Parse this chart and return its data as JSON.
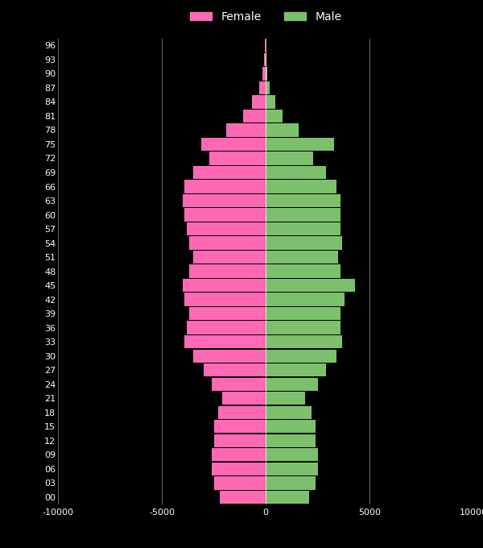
{
  "background_color": "#000000",
  "bar_color_female": "#FF69B4",
  "bar_color_male": "#7DC06B",
  "text_color": "#FFFFFF",
  "grid_color": "#FFFFFF",
  "ages": [
    0,
    3,
    6,
    9,
    12,
    15,
    18,
    21,
    24,
    27,
    30,
    33,
    36,
    39,
    42,
    45,
    48,
    51,
    54,
    57,
    60,
    63,
    66,
    69,
    72,
    75,
    78,
    81,
    84,
    87,
    90,
    93,
    96
  ],
  "female": [
    2200,
    2500,
    2600,
    2600,
    2500,
    2500,
    2300,
    2100,
    2600,
    3000,
    3500,
    3900,
    3800,
    3700,
    3900,
    4000,
    3700,
    3500,
    3700,
    3800,
    3900,
    4000,
    3900,
    3500,
    2700,
    3100,
    1900,
    1100,
    650,
    300,
    160,
    70,
    25
  ],
  "male": [
    2100,
    2400,
    2500,
    2500,
    2400,
    2400,
    2200,
    1900,
    2500,
    2900,
    3400,
    3700,
    3600,
    3600,
    3800,
    4300,
    3600,
    3500,
    3700,
    3600,
    3600,
    3600,
    3400,
    2900,
    2300,
    3300,
    1600,
    800,
    450,
    180,
    90,
    35,
    10
  ],
  "xlim": [
    -10000,
    10000
  ],
  "xticks": [
    -10000,
    -5000,
    0,
    5000,
    10000
  ],
  "xtick_labels": [
    "-10000",
    "-5000",
    "0",
    "5000",
    "10000"
  ],
  "bar_height": 2.8,
  "figsize": [
    6.0,
    6.8
  ],
  "dpi": 100,
  "legend_fontsize": 10,
  "tick_fontsize": 8
}
